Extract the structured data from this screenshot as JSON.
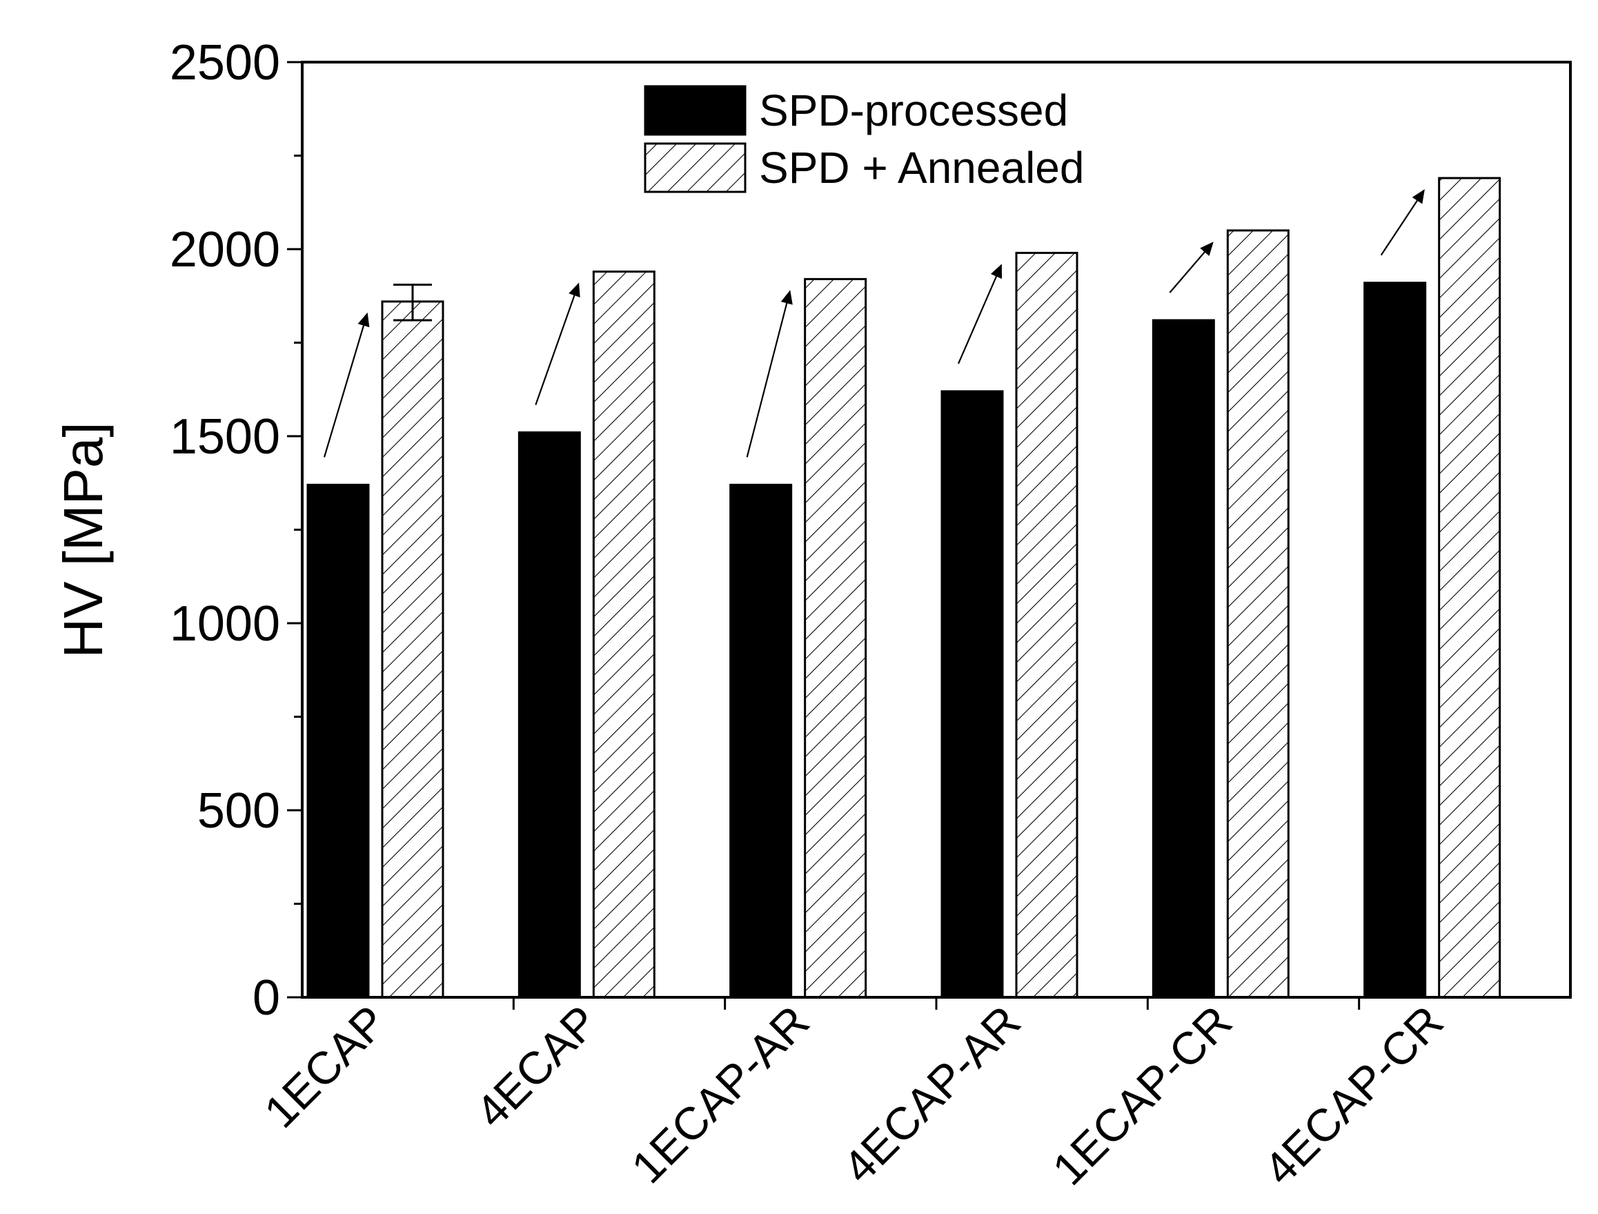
{
  "chart_data": {
    "type": "bar",
    "title": "",
    "xlabel": "",
    "ylabel": "HV [MPa]",
    "ylim": [
      0,
      2500
    ],
    "yticks": [
      0,
      500,
      1000,
      1500,
      2000,
      2500
    ],
    "grid": false,
    "legend_position": "top-center",
    "categories": [
      "1ECAP",
      "4ECAP",
      "1ECAP-AR",
      "4ECAP-AR",
      "1ECAP-CR",
      "4ECAP-CR"
    ],
    "series": [
      {
        "name": "SPD-processed",
        "fill": "solid",
        "color": "#000000",
        "values": [
          1370,
          1510,
          1370,
          1620,
          1810,
          1910
        ]
      },
      {
        "name": "SPD + Annealed",
        "fill": "hatched",
        "color": "#ffffff",
        "values": [
          1860,
          1940,
          1920,
          1990,
          2050,
          2190
        ]
      }
    ],
    "error_bars": [
      {
        "series": "SPD + Annealed",
        "category": "1ECAP",
        "value": 1860,
        "low": 1810,
        "high": 1905
      }
    ],
    "annotations": "arrows from each SPD-processed bar to its SPD + Annealed bar"
  }
}
